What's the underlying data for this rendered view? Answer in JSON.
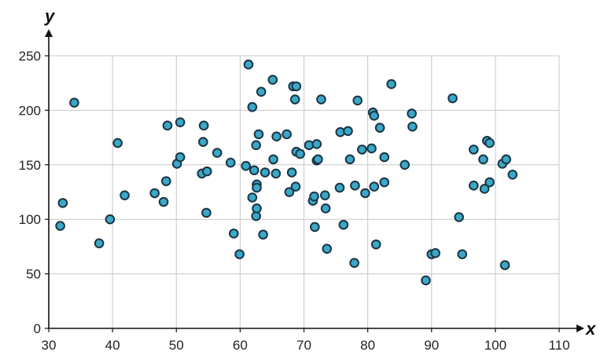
{
  "chart_data": {
    "type": "scatter",
    "title": "",
    "xlabel": "x",
    "ylabel": "y",
    "xlim": [
      30,
      110
    ],
    "ylim": [
      0,
      250
    ],
    "x_ticks": [
      30,
      40,
      50,
      60,
      70,
      80,
      90,
      100,
      110
    ],
    "y_ticks": [
      0,
      50,
      100,
      150,
      200,
      250
    ],
    "grid": true,
    "marker_fill": "#3aa8c8",
    "marker_stroke": "#1b3442",
    "points": [
      [
        31.8,
        94
      ],
      [
        32.2,
        115
      ],
      [
        34.0,
        207
      ],
      [
        37.9,
        78
      ],
      [
        39.6,
        100
      ],
      [
        40.8,
        170
      ],
      [
        41.9,
        122
      ],
      [
        46.6,
        124
      ],
      [
        48.0,
        116
      ],
      [
        48.4,
        135
      ],
      [
        48.6,
        186
      ],
      [
        50.1,
        151
      ],
      [
        50.6,
        157
      ],
      [
        50.6,
        189
      ],
      [
        54.0,
        142
      ],
      [
        54.2,
        171
      ],
      [
        54.3,
        186
      ],
      [
        54.7,
        106
      ],
      [
        54.8,
        144
      ],
      [
        56.4,
        161
      ],
      [
        58.5,
        152
      ],
      [
        59.0,
        87
      ],
      [
        59.9,
        68
      ],
      [
        60.9,
        149
      ],
      [
        61.3,
        242
      ],
      [
        61.9,
        120
      ],
      [
        61.9,
        203
      ],
      [
        62.2,
        145
      ],
      [
        62.5,
        103
      ],
      [
        62.5,
        168
      ],
      [
        62.6,
        132
      ],
      [
        62.6,
        110
      ],
      [
        62.6,
        129
      ],
      [
        62.9,
        178
      ],
      [
        63.3,
        217
      ],
      [
        63.6,
        86
      ],
      [
        63.9,
        143
      ],
      [
        65.1,
        228
      ],
      [
        65.2,
        155
      ],
      [
        65.6,
        142
      ],
      [
        65.7,
        176
      ],
      [
        67.3,
        178
      ],
      [
        67.7,
        125
      ],
      [
        68.1,
        143
      ],
      [
        68.3,
        222
      ],
      [
        68.6,
        210
      ],
      [
        68.7,
        130
      ],
      [
        68.8,
        222
      ],
      [
        68.8,
        162
      ],
      [
        69.4,
        160
      ],
      [
        70.8,
        168
      ],
      [
        71.4,
        117
      ],
      [
        71.6,
        121
      ],
      [
        71.7,
        93
      ],
      [
        72.0,
        169
      ],
      [
        72.0,
        154
      ],
      [
        72.2,
        155
      ],
      [
        72.7,
        210
      ],
      [
        73.3,
        122
      ],
      [
        73.4,
        110
      ],
      [
        73.6,
        73
      ],
      [
        75.6,
        129
      ],
      [
        75.7,
        180
      ],
      [
        76.2,
        95
      ],
      [
        76.9,
        181
      ],
      [
        77.2,
        155
      ],
      [
        77.9,
        60
      ],
      [
        78.0,
        131
      ],
      [
        78.4,
        209
      ],
      [
        79.1,
        164
      ],
      [
        79.6,
        124
      ],
      [
        80.6,
        165
      ],
      [
        80.8,
        198
      ],
      [
        81.0,
        195
      ],
      [
        81.0,
        130
      ],
      [
        81.3,
        77
      ],
      [
        81.9,
        184
      ],
      [
        82.6,
        134
      ],
      [
        82.6,
        157
      ],
      [
        83.7,
        224
      ],
      [
        85.8,
        150
      ],
      [
        86.9,
        197
      ],
      [
        87.0,
        185
      ],
      [
        89.1,
        44
      ],
      [
        90.0,
        68
      ],
      [
        90.6,
        69
      ],
      [
        93.3,
        211
      ],
      [
        94.3,
        102
      ],
      [
        94.8,
        68
      ],
      [
        96.6,
        164
      ],
      [
        96.6,
        131
      ],
      [
        98.1,
        155
      ],
      [
        98.3,
        128
      ],
      [
        98.7,
        172
      ],
      [
        99.1,
        170
      ],
      [
        99.1,
        134
      ],
      [
        101.1,
        151
      ],
      [
        101.5,
        58
      ],
      [
        101.7,
        155
      ],
      [
        102.7,
        141
      ]
    ]
  }
}
